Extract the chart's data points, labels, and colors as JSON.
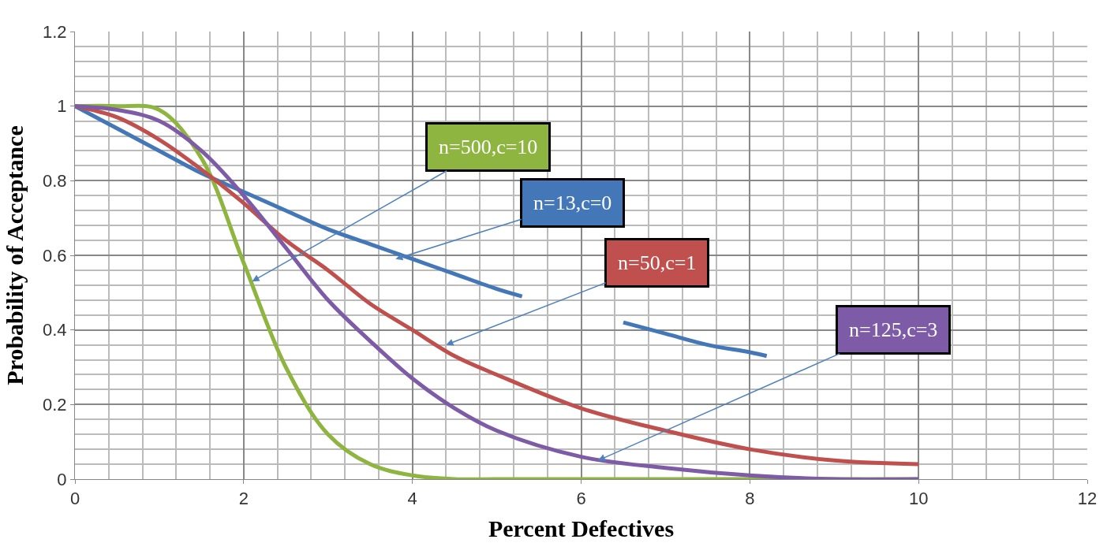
{
  "chart_data": {
    "type": "line",
    "xlabel": "Percent Defectives",
    "ylabel": "Probability of Acceptance",
    "xlim": [
      0,
      12
    ],
    "xticks": [
      0,
      2,
      4,
      6,
      8,
      10,
      12
    ],
    "ylim": [
      0,
      1.2
    ],
    "yticks": [
      0,
      0.2,
      0.4,
      0.6,
      0.8,
      1,
      1.2
    ],
    "grid": true,
    "marker": "none",
    "line_style": "solid",
    "series": [
      {
        "color": "#8db53f",
        "x": [
          0,
          0.5,
          1,
          1.5,
          2,
          2.5,
          3,
          3.5,
          4,
          4.5,
          5,
          6,
          7,
          8,
          9,
          10
        ],
        "values": [
          1,
          1,
          0.99,
          0.86,
          0.58,
          0.3,
          0.12,
          0.04,
          0.01,
          0,
          0,
          0,
          0,
          0,
          0,
          0
        ]
      },
      {
        "color": "#4377b8",
        "x": [
          0,
          0.5,
          1,
          1.5,
          2,
          2.5,
          3,
          3.5,
          4,
          4.5,
          5,
          5.3,
          6,
          6.5,
          7,
          7.5,
          8,
          8.2
        ],
        "values": [
          1,
          0.94,
          0.88,
          0.82,
          0.77,
          0.72,
          0.67,
          0.63,
          0.59,
          0.55,
          0.51,
          0.49,
          null,
          0.42,
          0.39,
          0.36,
          0.34,
          0.33
        ]
      },
      {
        "color": "#c0504d",
        "x": [
          0,
          0.5,
          1,
          1.5,
          2,
          2.5,
          3,
          3.5,
          4,
          4.5,
          5,
          6,
          7,
          8,
          9,
          10
        ],
        "values": [
          1,
          0.97,
          0.91,
          0.83,
          0.74,
          0.64,
          0.56,
          0.47,
          0.4,
          0.33,
          0.28,
          0.19,
          0.13,
          0.08,
          0.05,
          0.04
        ]
      },
      {
        "color": "#7e5ba6",
        "x": [
          0,
          0.5,
          1,
          1.5,
          2,
          2.5,
          3,
          3.5,
          4,
          4.5,
          5,
          6,
          7,
          8,
          9,
          10
        ],
        "values": [
          1,
          0.99,
          0.96,
          0.88,
          0.76,
          0.62,
          0.48,
          0.37,
          0.27,
          0.19,
          0.13,
          0.06,
          0.03,
          0.01,
          0,
          0
        ]
      }
    ],
    "annotations": [
      {
        "text": "n=500,c=10",
        "x": 2.1,
        "y": 0.53
      },
      {
        "text": "n=13,c=0",
        "x": 3.8,
        "y": 0.59
      },
      {
        "text": "n=50,c=1",
        "x": 4.4,
        "y": 0.36
      },
      {
        "text": "n=125,c=3",
        "x": 6.2,
        "y": 0.05
      }
    ]
  }
}
